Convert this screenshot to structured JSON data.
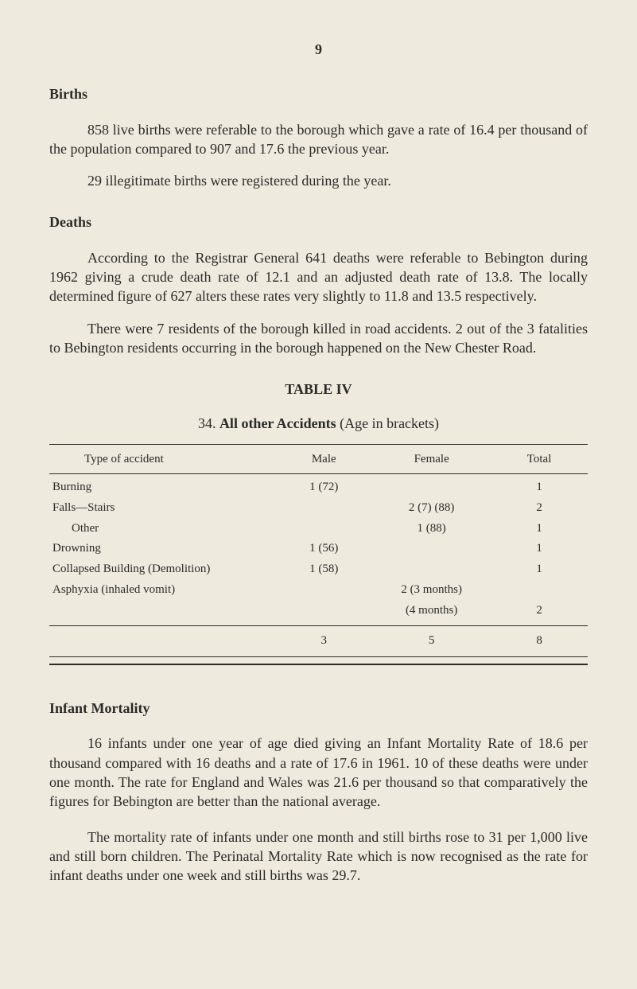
{
  "page_number": "9",
  "sections": {
    "births": {
      "heading": "Births",
      "para1": "858 live births were referable to the borough which gave a rate of 16.4 per thousand of the population compared to 907 and 17.6 the previous year.",
      "para2": "29 illegitimate births were registered during the year."
    },
    "deaths": {
      "heading": "Deaths",
      "para1": "According to the Registrar General 641 deaths were referable to Bebington during 1962 giving a crude death rate of 12.1 and an adjusted death rate of 13.8. The locally determined figure of 627 alters these rates very slightly to 11.8 and 13.5 respectively.",
      "para2": "There were 7 residents of the borough killed in road accidents. 2 out of the 3 fatalities to Bebington residents occurring in the borough happened on the New Chester Road."
    },
    "table": {
      "title": "TABLE IV",
      "subtitle_prefix": "34.   ",
      "subtitle_bold": "All other Accidents",
      "subtitle_suffix": " (Age in brackets)",
      "columns": [
        "Type of accident",
        "Male",
        "Female",
        "Total"
      ],
      "rows": [
        {
          "type": "Burning",
          "male": "1 (72)",
          "female": "",
          "total": "1"
        },
        {
          "type": "Falls—Stairs",
          "male": "",
          "female": "2 (7) (88)",
          "total": "2"
        },
        {
          "type_indent": "Other",
          "male": "",
          "female": "1 (88)",
          "total": "1"
        },
        {
          "type": "Drowning",
          "male": "1 (56)",
          "female": "",
          "total": "1"
        },
        {
          "type": "Collapsed Building (Demolition)",
          "male": "1 (58)",
          "female": "",
          "total": "1"
        },
        {
          "type": "Asphyxia (inhaled vomit)",
          "male": "",
          "female": "2 (3 months)",
          "total": ""
        },
        {
          "type": "",
          "male": "",
          "female": "(4 months)",
          "total": "2"
        }
      ],
      "totals": {
        "male": "3",
        "female": "5",
        "total": "8"
      }
    },
    "infant_mortality": {
      "heading": "Infant Mortality",
      "para1": "16 infants under one year of age died giving an Infant Mortality Rate of 18.6 per thousand compared with 16 deaths and a rate of 17.6 in 1961. 10 of these deaths were under one month. The rate for England and Wales was 21.6 per thousand so that comparatively the figures for Bebington are better than the national average.",
      "para2": "The mortality rate of infants under one month and still births rose to 31 per 1,000 live and still born children. The Perinatal Mortality Rate which is now recognised as the rate for infant deaths under one week and still births was 29.7."
    }
  },
  "colors": {
    "background": "#eeeadd",
    "text": "#2a2a2a",
    "rule": "#2a2a2a"
  },
  "typography": {
    "body_fontsize": 18,
    "table_fontsize": 15,
    "font_family": "Georgia, Times New Roman, serif"
  }
}
